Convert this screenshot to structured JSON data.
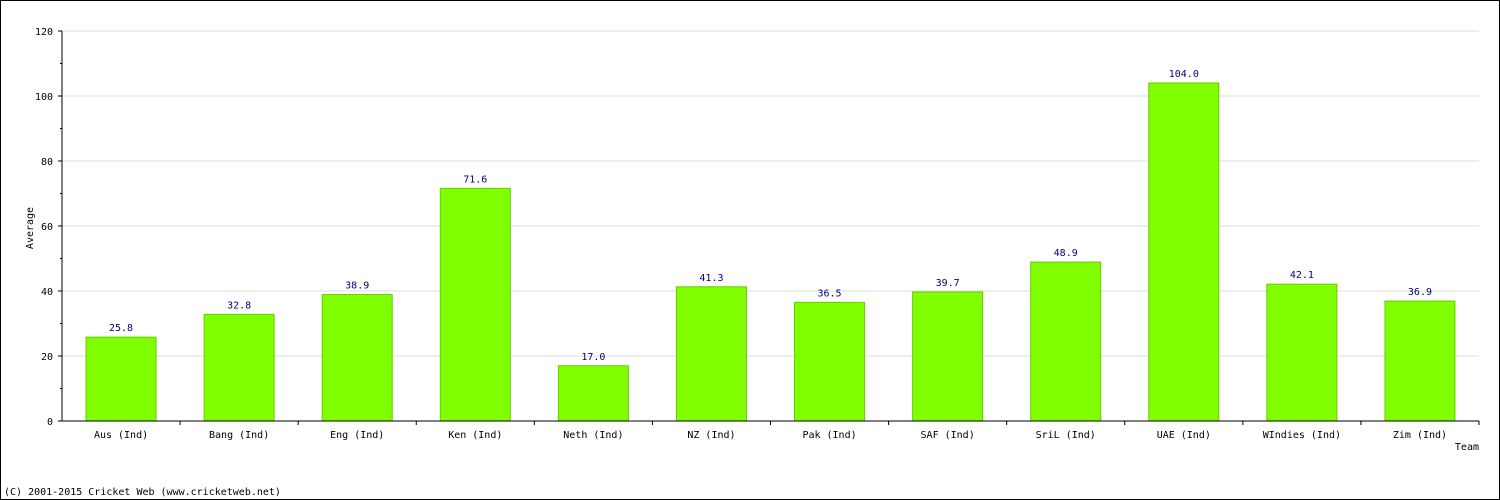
{
  "chart_data": {
    "type": "bar",
    "title": "",
    "xlabel": "Team",
    "ylabel": "Average",
    "ylim": [
      0,
      120
    ],
    "yticks": [
      0,
      20,
      40,
      60,
      80,
      100,
      120
    ],
    "grid": true,
    "categories": [
      "Aus (Ind)",
      "Bang (Ind)",
      "Eng (Ind)",
      "Ken (Ind)",
      "Neth (Ind)",
      "NZ (Ind)",
      "Pak (Ind)",
      "SAF (Ind)",
      "SriL (Ind)",
      "UAE (Ind)",
      "WIndies (Ind)",
      "Zim (Ind)"
    ],
    "values": [
      25.8,
      32.8,
      38.9,
      71.6,
      17.0,
      41.3,
      36.5,
      39.7,
      48.9,
      104.0,
      42.1,
      36.9
    ],
    "value_labels": [
      "25.8",
      "32.8",
      "38.9",
      "71.6",
      "17.0",
      "41.3",
      "36.5",
      "39.7",
      "48.9",
      "104.0",
      "42.1",
      "36.9"
    ],
    "colors": {
      "bar_fill": "#80ff00",
      "bar_stroke": "#66cc00",
      "value_label": "#000080",
      "grid": "#dddddd",
      "axis": "#000000"
    }
  },
  "footer": {
    "copyright": "(C) 2001-2015 Cricket Web (www.cricketweb.net)"
  }
}
